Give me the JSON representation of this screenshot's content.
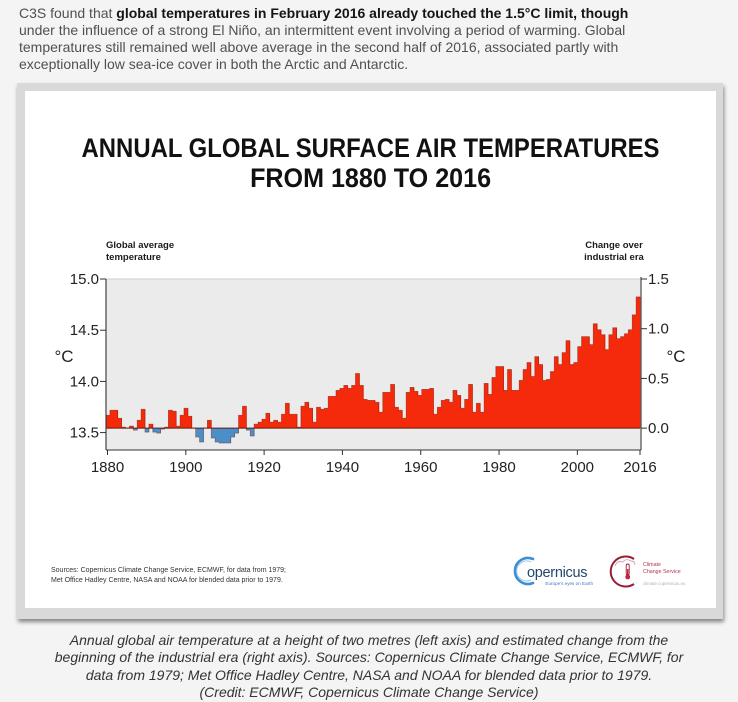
{
  "intro": {
    "prefix": "C3S found that ",
    "bold": "global temperatures in February 2016 already touched the 1.5°C limit, though",
    "lines": [
      "under the influence of a strong El Niño, an intermittent event involving a period of warming. Global",
      "temperatures still remained well above average in the second half of 2016, associated partly with",
      "exceptionally low sea-ice cover in both the Arctic and Antarctic."
    ]
  },
  "figure": {
    "title_lines": [
      "ANNUAL GLOBAL SURFACE AIR TEMPERATURES",
      "FROM 1880 TO 2016"
    ],
    "sources_lines": [
      "Sources: Copernicus Climate Change Service, ECMWF, for data from 1979;",
      "Met Office Hadley Centre, NASA and NOAA for blended data prior to 1979."
    ],
    "logos": {
      "copernicus": {
        "wordmark": "opernicus",
        "tagline": "Europe's eyes on Earth",
        "icon": "copernicus-c-arc-icon"
      },
      "climate_change_service": {
        "lines": [
          "Climate",
          "Change Service"
        ],
        "url": "climate.copernicus.eu",
        "icon": "thermometer-cloud-icon"
      }
    }
  },
  "caption_lines": [
    "Annual global air temperature at a height of two metres (left axis) and estimated change from the",
    "beginning of the industrial era (right axis). Sources: Copernicus Climate Change Service, ECMWF, for",
    "data from 1979; Met Office Hadley Centre, NASA and NOAA for blended data prior to 1979.",
    "(Credit: ECMWF, Copernicus Climate Change Service)"
  ],
  "chart_data": {
    "type": "bar",
    "title": "ANNUAL GLOBAL SURFACE AIR TEMPERATURES FROM 1880 TO 2016",
    "xlabel": "",
    "years": [
      1880,
      1881,
      1882,
      1883,
      1884,
      1885,
      1886,
      1887,
      1888,
      1889,
      1890,
      1891,
      1892,
      1893,
      1894,
      1895,
      1896,
      1897,
      1898,
      1899,
      1900,
      1901,
      1902,
      1903,
      1904,
      1905,
      1906,
      1907,
      1908,
      1909,
      1910,
      1911,
      1912,
      1913,
      1914,
      1915,
      1916,
      1917,
      1918,
      1919,
      1920,
      1921,
      1922,
      1923,
      1924,
      1925,
      1926,
      1927,
      1928,
      1929,
      1930,
      1931,
      1932,
      1933,
      1934,
      1935,
      1936,
      1937,
      1938,
      1939,
      1940,
      1941,
      1942,
      1943,
      1944,
      1945,
      1946,
      1947,
      1948,
      1949,
      1950,
      1951,
      1952,
      1953,
      1954,
      1955,
      1956,
      1957,
      1958,
      1959,
      1960,
      1961,
      1962,
      1963,
      1964,
      1965,
      1966,
      1967,
      1968,
      1969,
      1970,
      1971,
      1972,
      1973,
      1974,
      1975,
      1976,
      1977,
      1978,
      1979,
      1980,
      1981,
      1982,
      1983,
      1984,
      1985,
      1986,
      1987,
      1988,
      1989,
      1990,
      1991,
      1992,
      1993,
      1994,
      1995,
      1996,
      1997,
      1998,
      1999,
      2000,
      2001,
      2002,
      2003,
      2004,
      2005,
      2006,
      2007,
      2008,
      2009,
      2010,
      2011,
      2012,
      2013,
      2014,
      2015,
      2016
    ],
    "series": [
      {
        "name": "Change over industrial era (°C)",
        "values": [
          0.13,
          0.18,
          0.18,
          0.1,
          0.01,
          0.0,
          0.02,
          -0.02,
          0.08,
          0.19,
          -0.04,
          0.04,
          -0.04,
          -0.05,
          -0.01,
          0.01,
          0.18,
          0.17,
          0.02,
          0.13,
          0.2,
          0.12,
          0.0,
          -0.09,
          -0.14,
          0.0,
          0.08,
          -0.1,
          -0.14,
          -0.15,
          -0.15,
          -0.15,
          -0.09,
          -0.05,
          0.13,
          0.22,
          -0.02,
          -0.08,
          0.04,
          0.06,
          0.09,
          0.15,
          0.06,
          0.08,
          0.06,
          0.14,
          0.25,
          0.14,
          0.14,
          0.01,
          0.22,
          0.26,
          0.2,
          0.06,
          0.21,
          0.19,
          0.2,
          0.32,
          0.32,
          0.38,
          0.4,
          0.43,
          0.4,
          0.43,
          0.55,
          0.43,
          0.29,
          0.28,
          0.28,
          0.26,
          0.16,
          0.36,
          0.36,
          0.44,
          0.21,
          0.18,
          0.1,
          0.36,
          0.41,
          0.37,
          0.33,
          0.39,
          0.39,
          0.4,
          0.14,
          0.21,
          0.28,
          0.29,
          0.26,
          0.38,
          0.33,
          0.2,
          0.29,
          0.44,
          0.16,
          0.25,
          0.16,
          0.45,
          0.34,
          0.51,
          0.62,
          0.62,
          0.38,
          0.59,
          0.38,
          0.38,
          0.48,
          0.59,
          0.66,
          0.52,
          0.72,
          0.64,
          0.48,
          0.49,
          0.57,
          0.72,
          0.64,
          0.76,
          0.88,
          0.64,
          0.66,
          0.82,
          0.92,
          0.92,
          0.84,
          1.05,
          0.99,
          0.94,
          0.79,
          0.94,
          1.01,
          0.9,
          0.92,
          0.95,
          0.99,
          1.14,
          1.32
        ]
      }
    ],
    "xticks": [
      1880,
      1900,
      1920,
      1940,
      1960,
      1980,
      2000,
      2016
    ],
    "xtick_labels": [
      "1880",
      "1900",
      "1920",
      "1940",
      "1960",
      "1980",
      "2000",
      "2016"
    ],
    "left_axis": {
      "header_lines": [
        "Global average",
        "temperature"
      ],
      "unit": "°C",
      "ticks": [
        13.5,
        14.0,
        14.5,
        15.0
      ],
      "tick_labels": [
        "13.5",
        "14.0",
        "14.5",
        "15.0"
      ],
      "range": [
        13.33,
        15.0
      ]
    },
    "right_axis": {
      "header_lines": [
        "Change over",
        "industrial era"
      ],
      "unit": "°C",
      "ticks": [
        0.0,
        0.5,
        1.0,
        1.5
      ],
      "tick_labels": [
        "0.0",
        "0.5",
        "1.0",
        "1.5"
      ],
      "range": [
        -0.22,
        1.5
      ]
    },
    "colors": {
      "positive": "#f42a0b",
      "negative": "#4a8fc8",
      "plot_bg": "#ebebeb",
      "baseline": "#5e1a0e"
    },
    "grid": false,
    "legend": "none"
  }
}
